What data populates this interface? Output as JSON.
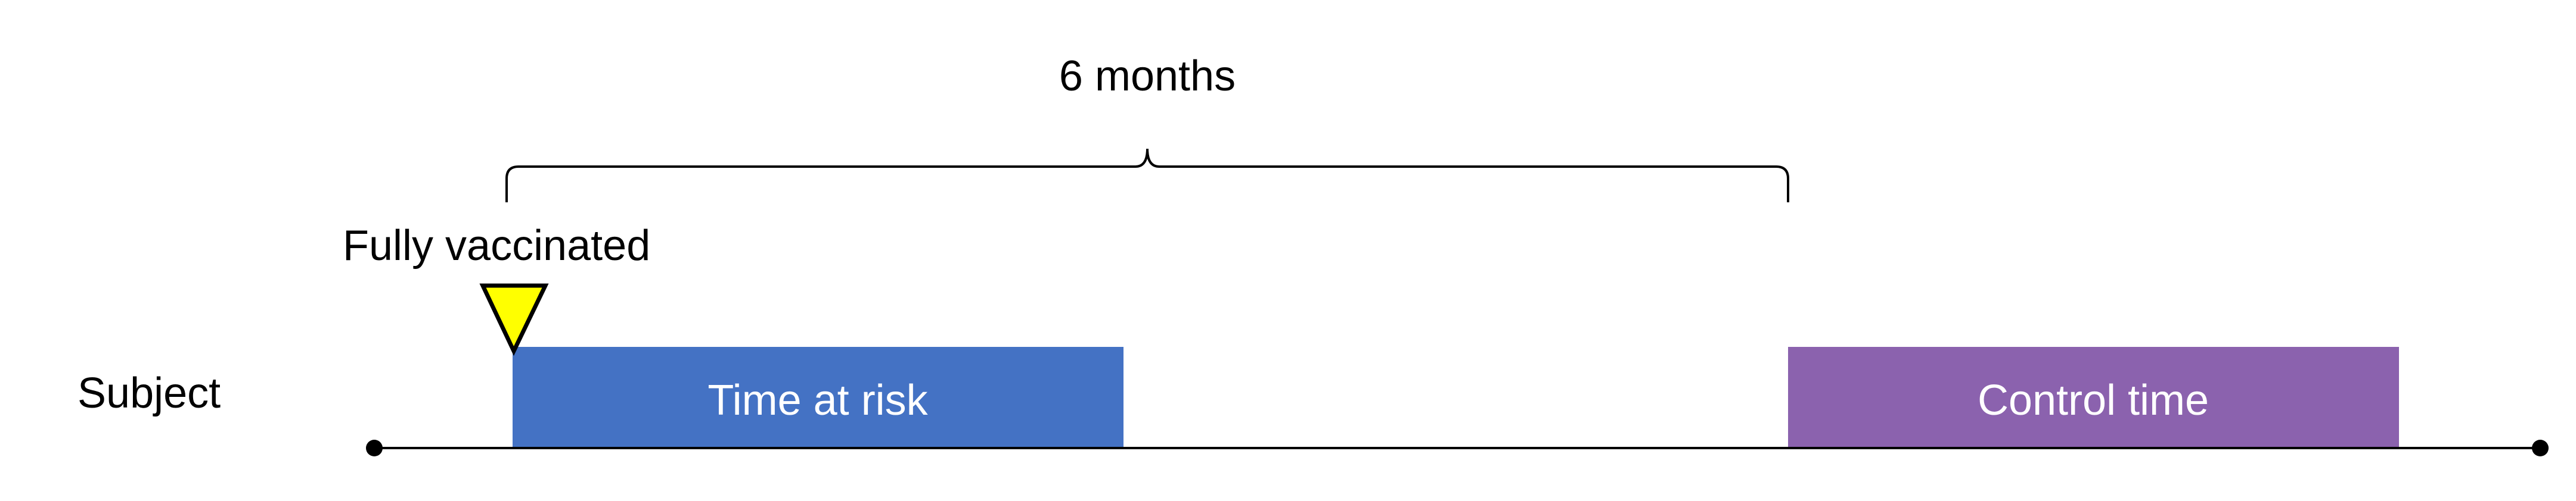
{
  "duration_label": "6 months",
  "event_label": "Fully vaccinated",
  "row_label": "Subject",
  "periods": {
    "risk_label": "Time at risk",
    "control_label": "Control time"
  },
  "colors": {
    "risk": "#4472C4",
    "control": "#8B62AE",
    "marker": "#FFFF00",
    "line": "#000000"
  },
  "icons": {
    "event_marker": "down-triangle-icon"
  }
}
